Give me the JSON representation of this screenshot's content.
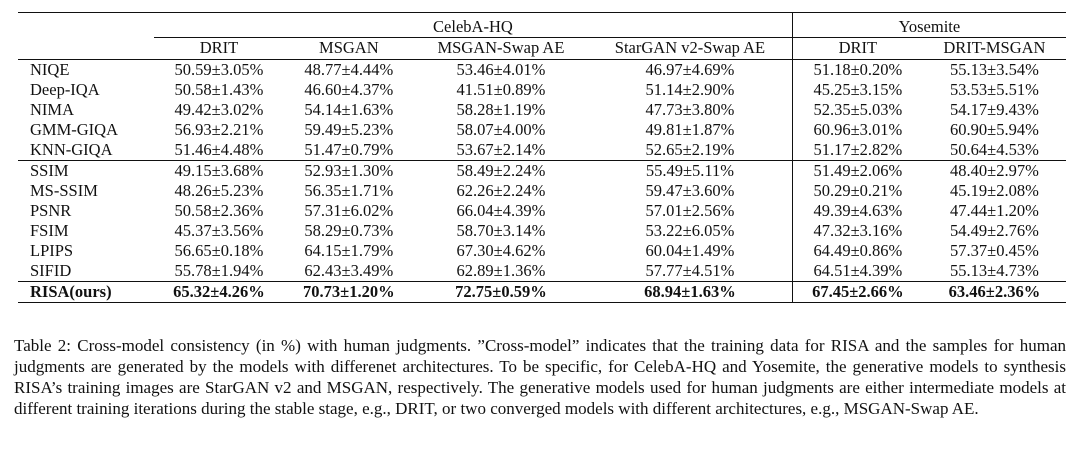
{
  "table": {
    "groups": [
      {
        "label": "CelebA-HQ"
      },
      {
        "label": "Yosemite"
      }
    ],
    "columns": [
      "DRIT",
      "MSGAN",
      "MSGAN-Swap AE",
      "StarGAN v2-Swap AE",
      "DRIT",
      "DRIT-MSGAN"
    ],
    "section1": [
      {
        "name": "NIQE",
        "values": [
          "50.59±3.05%",
          "48.77±4.44%",
          "53.46±4.01%",
          "46.97±4.69%",
          "51.18±0.20%",
          "55.13±3.54%"
        ]
      },
      {
        "name": "Deep-IQA",
        "values": [
          "50.58±1.43%",
          "46.60±4.37%",
          "41.51±0.89%",
          "51.14±2.90%",
          "45.25±3.15%",
          "53.53±5.51%"
        ]
      },
      {
        "name": "NIMA",
        "values": [
          "49.42±3.02%",
          "54.14±1.63%",
          "58.28±1.19%",
          "47.73±3.80%",
          "52.35±5.03%",
          "54.17±9.43%"
        ]
      },
      {
        "name": "GMM-GIQA",
        "values": [
          "56.93±2.21%",
          "59.49±5.23%",
          "58.07±4.00%",
          "49.81±1.87%",
          "60.96±3.01%",
          "60.90±5.94%"
        ]
      },
      {
        "name": "KNN-GIQA",
        "values": [
          "51.46±4.48%",
          "51.47±0.79%",
          "53.67±2.14%",
          "52.65±2.19%",
          "51.17±2.82%",
          "50.64±4.53%"
        ]
      }
    ],
    "section2": [
      {
        "name": "SSIM",
        "values": [
          "49.15±3.68%",
          "52.93±1.30%",
          "58.49±2.24%",
          "55.49±5.11%",
          "51.49±2.06%",
          "48.40±2.97%"
        ]
      },
      {
        "name": "MS-SSIM",
        "values": [
          "48.26±5.23%",
          "56.35±1.71%",
          "62.26±2.24%",
          "59.47±3.60%",
          "50.29±0.21%",
          "45.19±2.08%"
        ]
      },
      {
        "name": "PSNR",
        "values": [
          "50.58±2.36%",
          "57.31±6.02%",
          "66.04±4.39%",
          "57.01±2.56%",
          "49.39±4.63%",
          "47.44±1.20%"
        ]
      },
      {
        "name": "FSIM",
        "values": [
          "45.37±3.56%",
          "58.29±0.73%",
          "58.70±3.14%",
          "53.22±6.05%",
          "47.32±3.16%",
          "54.49±2.76%"
        ]
      },
      {
        "name": "LPIPS",
        "values": [
          "56.65±0.18%",
          "64.15±1.79%",
          "67.30±4.62%",
          "60.04±1.49%",
          "64.49±0.86%",
          "57.37±0.45%"
        ]
      },
      {
        "name": "SIFID",
        "values": [
          "55.78±1.94%",
          "62.43±3.49%",
          "62.89±1.36%",
          "57.77±4.51%",
          "64.51±4.39%",
          "55.13±4.73%"
        ]
      }
    ],
    "ours": {
      "name": "RISA(ours)",
      "values": [
        "65.32±4.26%",
        "70.73±1.20%",
        "72.75±0.59%",
        "68.94±1.63%",
        "67.45±2.66%",
        "63.46±2.36%"
      ]
    }
  },
  "caption": "Table 2: Cross-model consistency (in %) with human judgments. ”Cross-model” indicates that the training data for RISA and the samples for human judgments are generated by the models with differenet architectures. To be specific, for CelebA-HQ and Yosemite, the generative models to synthesis RISA’s training images are StarGAN v2 and MSGAN, respectively. The generative models used for human judgments are either intermediate models at different training iterations during the stable stage, e.g., DRIT, or two converged models with different architectures, e.g., MSGAN-Swap AE."
}
